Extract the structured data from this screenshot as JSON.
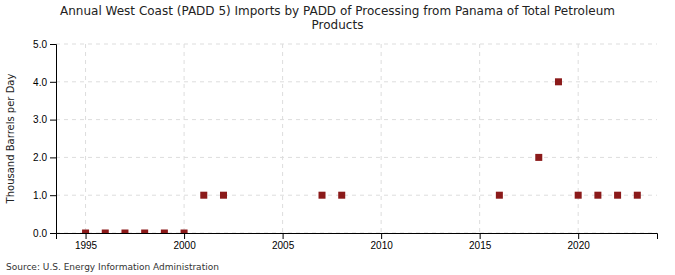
{
  "chart_data": {
    "type": "scatter",
    "title": "Annual West Coast (PADD 5) Imports by PADD of Processing from Panama of Total Petroleum\nProducts",
    "ylabel": "Thousand Barrels per Day",
    "annotations": [
      "Source: U.S. Energy Information Administration"
    ],
    "x": [
      1995,
      1996,
      1997,
      1998,
      1999,
      2000,
      2001,
      2002,
      2007,
      2008,
      2016,
      2018,
      2019,
      2020,
      2021,
      2022,
      2023
    ],
    "values": [
      0.0,
      0.0,
      0.0,
      0.0,
      0.0,
      0.0,
      1.0,
      1.0,
      1.0,
      1.0,
      1.0,
      2.0,
      4.0,
      1.0,
      1.0,
      1.0,
      1.0
    ],
    "color": "#8b1a1a",
    "marker": "square",
    "xlim": [
      1993.5,
      2024
    ],
    "xticks": [
      1995,
      2000,
      2005,
      2010,
      2015,
      2020
    ],
    "ylim": [
      0,
      5.0
    ],
    "yticks": [
      {
        "value": 0.0,
        "label": "0.0"
      },
      {
        "value": 1.0,
        "label": "1.0"
      },
      {
        "value": 2.0,
        "label": "2.0"
      },
      {
        "value": 3.0,
        "label": "3.0"
      },
      {
        "value": 4.0,
        "label": "4.0"
      },
      {
        "value": 5.0,
        "label": "5.0"
      }
    ],
    "grid": true
  }
}
